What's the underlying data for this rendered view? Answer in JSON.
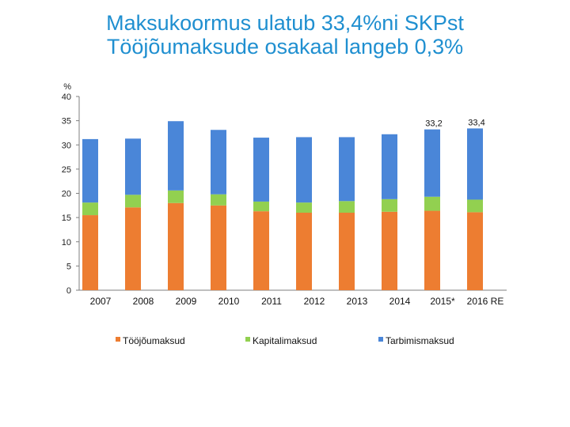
{
  "title": {
    "line1": "Maksukoormus ulatub 33,4%ni SKPst",
    "line2": "Tööjõumaksude osakaal langeb 0,3%"
  },
  "chart_data": {
    "type": "bar",
    "stacked": true,
    "title": "Maksukoormus ulatub 33,4%ni SKPst Tööjõumaksude osakaal langeb 0,3%",
    "ylabel": "%",
    "xlabel": "",
    "ylim": [
      0,
      40
    ],
    "yticks": [
      0,
      5,
      10,
      15,
      20,
      25,
      30,
      35,
      40
    ],
    "grid": false,
    "legend_position": "bottom",
    "categories": [
      "2007",
      "2008",
      "2009",
      "2010",
      "2011",
      "2012",
      "2013",
      "2014",
      "2015*",
      "2016 RE"
    ],
    "series": [
      {
        "name": "Tööjõumaksud",
        "color": "#ed7d31",
        "values": [
          15.5,
          17.1,
          18.0,
          17.5,
          16.3,
          16.0,
          16.0,
          16.2,
          16.4,
          16.1
        ]
      },
      {
        "name": "Kapitalimaksud",
        "color": "#92d050",
        "values": [
          2.6,
          2.6,
          2.6,
          2.3,
          2.0,
          2.1,
          2.4,
          2.6,
          2.9,
          2.6
        ]
      },
      {
        "name": "Tarbimismaksud",
        "color": "#4a86d8",
        "values": [
          13.1,
          11.6,
          14.3,
          13.3,
          13.2,
          13.5,
          13.2,
          13.4,
          13.9,
          14.7
        ]
      }
    ],
    "data_labels": [
      {
        "category": "2015*",
        "text": "33,2"
      },
      {
        "category": "2016 RE",
        "text": "33,4"
      }
    ]
  }
}
